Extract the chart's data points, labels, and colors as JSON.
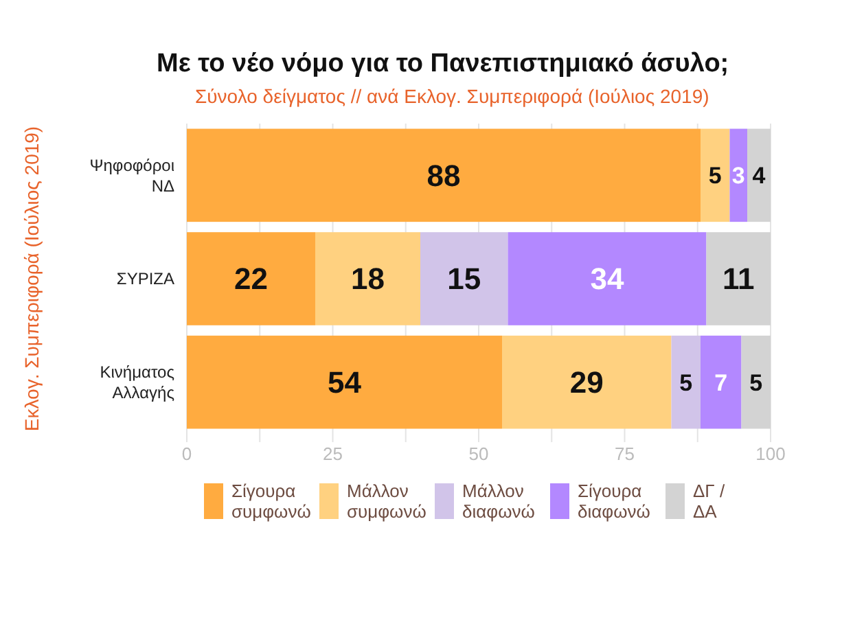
{
  "chart_data": {
    "type": "bar",
    "orientation": "horizontal",
    "stacked": true,
    "title": "Με το νέο νόμο για το Πανεπιστημιακό άσυλο;",
    "subtitle": "Σύνολο δείγματος // ανά Εκλογ. Συμπεριφορά (Ιούλιος 2019)",
    "ylabel": "Εκλογ. Συμπεριφορά (Ιούλιος 2019)",
    "categories": [
      "Ψηφοφόροι ΝΔ",
      "ΣΥΡΙΖΑ",
      "Κινήματος Αλλαγής"
    ],
    "series": [
      {
        "name": "Σίγουρα συμφωνώ",
        "color": "#ffab40",
        "values": [
          88,
          22,
          54
        ]
      },
      {
        "name": "Μάλλον συμφωνώ",
        "color": "#ffd180",
        "values": [
          5,
          18,
          29
        ]
      },
      {
        "name": "Μάλλον διαφωνώ",
        "color": "#d1c4e9",
        "values": [
          null,
          15,
          5
        ]
      },
      {
        "name": "Σίγουρα διαφωνώ",
        "color": "#b388ff",
        "values": [
          3,
          34,
          7
        ]
      },
      {
        "name": "ΔΓ / ΔΑ",
        "color": "#d3d3d3",
        "values": [
          4,
          11,
          5
        ]
      }
    ],
    "xlim": [
      0,
      100
    ],
    "xticks": [
      0,
      {
        "value": 12.5,
        "label": null
      },
      25,
      {
        "value": 37.5,
        "label": null
      },
      50,
      {
        "value": 62.5,
        "label": null
      },
      75,
      {
        "value": 87.5,
        "label": null
      },
      100
    ],
    "grid": "x",
    "legend": "bottom",
    "data_labels": true
  }
}
